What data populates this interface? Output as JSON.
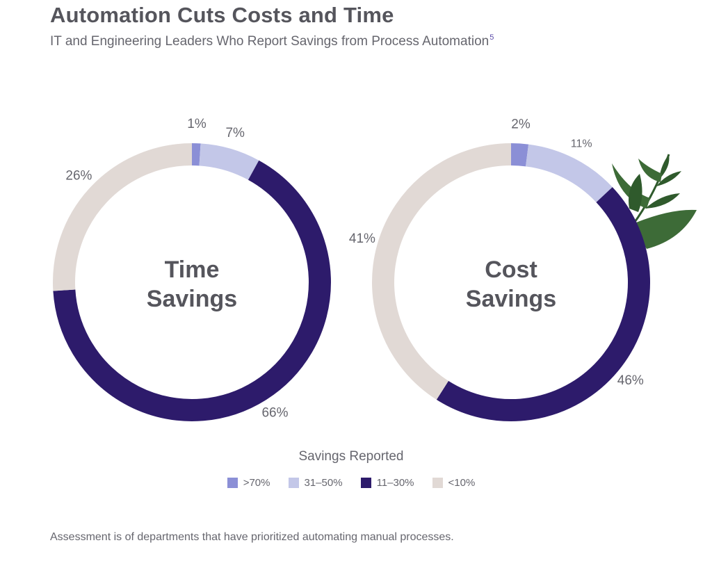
{
  "header": {
    "title": "Automation Cuts Costs and Time",
    "subtitle": "IT and Engineering Leaders Who Report Savings from Process Automation",
    "footnote_marker": "5"
  },
  "colors": {
    ">70%": "#8b8fd6",
    "31–50%": "#c3c7e8",
    "11–30%": "#2d1b6b",
    "<10%": "#e1d9d5",
    "leaf": "#2f5a2c"
  },
  "chart_data": [
    {
      "type": "donut",
      "center_label": [
        "Time",
        "Savings"
      ],
      "categories": [
        ">70%",
        "31–50%",
        "11–30%",
        "<10%"
      ],
      "values": [
        1,
        7,
        66,
        26
      ],
      "labels": [
        "1%",
        "7%",
        "66%",
        "26%"
      ]
    },
    {
      "type": "donut",
      "center_label": [
        "Cost",
        "Savings"
      ],
      "categories": [
        ">70%",
        "31–50%",
        "11–30%",
        "<10%"
      ],
      "values": [
        2,
        11,
        46,
        41
      ],
      "labels": [
        "2%",
        "11%",
        "46%",
        "41%"
      ]
    }
  ],
  "legend": {
    "title": "Savings Reported",
    "items": [
      ">70%",
      "31–50%",
      "11–30%",
      "<10%"
    ]
  },
  "footer": {
    "note": "Assessment is of departments that have prioritized automating manual processes."
  },
  "decorations": [
    "leaf-sprig-icon"
  ]
}
